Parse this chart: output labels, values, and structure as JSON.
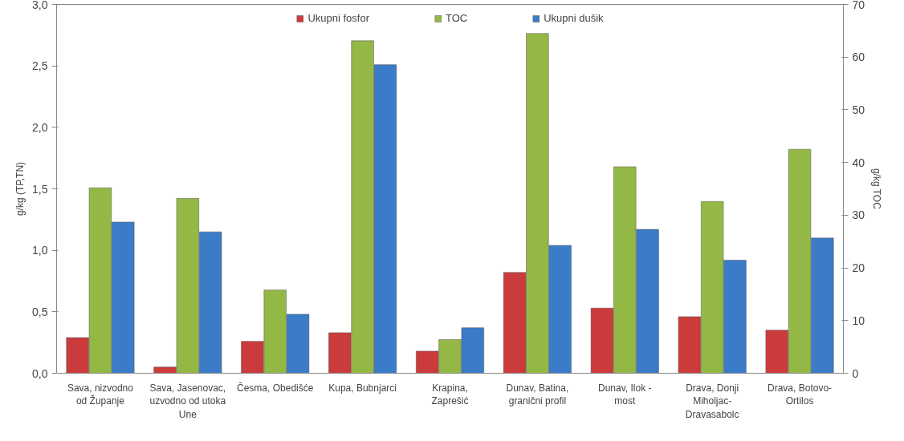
{
  "chart_data": {
    "type": "bar",
    "categories": [
      "Sava, nizvodno od Županje",
      "Sava, Jasenovac, uzvodno od utoka Une",
      "Česma, Obedišće",
      "Kupa, Bubnjarci",
      "Krapina, Zaprešić",
      "Dunav, Batina, granični profil",
      "Dunav, Ilok - most",
      "Drava, Donji Miholjac-Dravasabolc",
      "Drava, Botovo-Ortilos"
    ],
    "series": [
      {
        "name": "Ukupni fosfor",
        "color": "#cc3b3b",
        "values": [
          0.29,
          0.05,
          0.26,
          0.33,
          0.18,
          0.82,
          0.53,
          0.46,
          0.35
        ]
      },
      {
        "name": "TOC",
        "color": "#94b846",
        "axis": "y2",
        "values": [
          35.2,
          33.2,
          15.8,
          63.1,
          6.4,
          64.5,
          39.2,
          32.6,
          42.5
        ]
      },
      {
        "name": "Ukupni dušik",
        "color": "#3b7cc8",
        "values": [
          1.23,
          1.15,
          0.48,
          2.51,
          0.37,
          1.04,
          1.17,
          0.92,
          1.1
        ]
      }
    ],
    "ylabel": "g/kg (TP,TN)",
    "y2label": "g/kg TOC",
    "ylim": [
      0,
      3.0
    ],
    "yticks": [
      {
        "value": 0,
        "label": "0,0"
      },
      {
        "value": 0.5,
        "label": "0,5"
      },
      {
        "value": 1.0,
        "label": "1,0"
      },
      {
        "value": 1.5,
        "label": "1,5"
      },
      {
        "value": 2.0,
        "label": "2,0"
      },
      {
        "value": 2.5,
        "label": "2,5"
      },
      {
        "value": 3.0,
        "label": "3,0"
      }
    ],
    "y2lim": [
      0,
      70
    ],
    "y2ticks": [
      0,
      10,
      20,
      30,
      40,
      50,
      60,
      70
    ],
    "grid": false,
    "legend": "top"
  }
}
